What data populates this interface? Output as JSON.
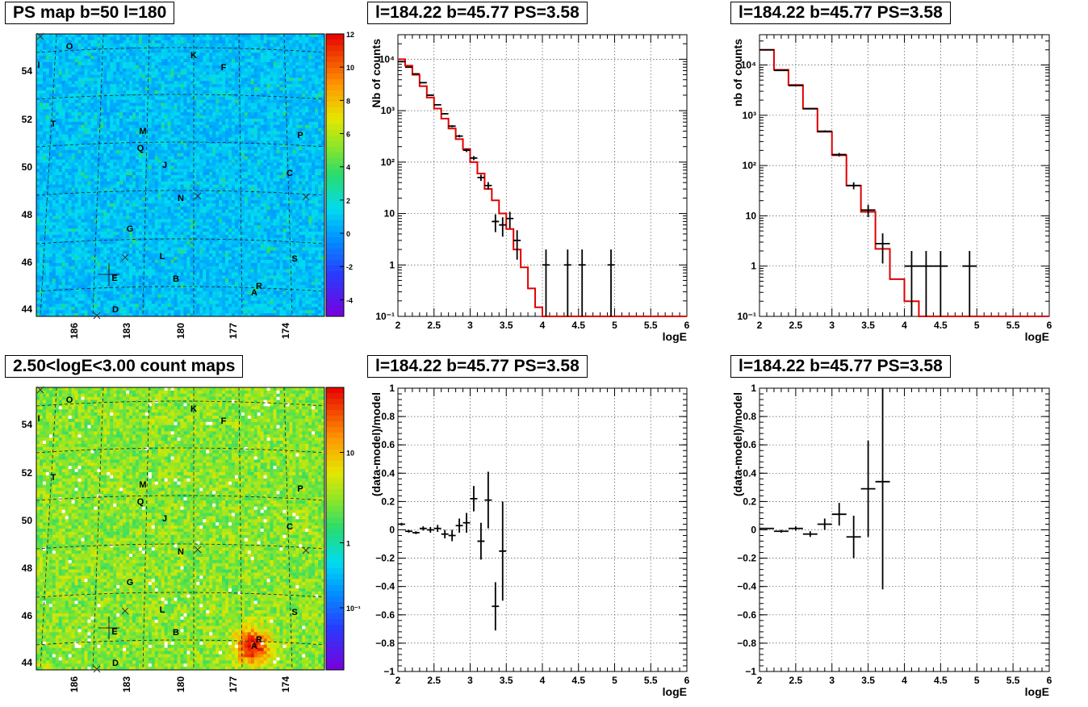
{
  "panels": {
    "map_top": {
      "title": "PS map b=50 l=180",
      "yticks": [
        "44",
        "46",
        "48",
        "50",
        "52",
        "54"
      ],
      "xticks": [
        "186",
        "183",
        "180",
        "177",
        "174"
      ],
      "colorbar_labels": [
        "-4",
        "-2",
        "0",
        "2",
        "4",
        "6",
        "8",
        "10",
        "12"
      ],
      "colorbar_range": [
        -5,
        12
      ]
    },
    "map_bottom": {
      "title": "2.50<logE<3.00 count maps",
      "yticks": [
        "44",
        "46",
        "48",
        "50",
        "52",
        "54"
      ],
      "xticks": [
        "186",
        "183",
        "180",
        "177",
        "174"
      ],
      "colorbar_labels": [
        "10⁻¹",
        "1",
        "10"
      ],
      "colorbar_log": true
    },
    "map_sources": [
      {
        "label": "O"
      },
      {
        "label": "I"
      },
      {
        "label": "K"
      },
      {
        "label": "F"
      },
      {
        "label": "T"
      },
      {
        "label": "M"
      },
      {
        "label": "P"
      },
      {
        "label": "Q"
      },
      {
        "label": "J"
      },
      {
        "label": "C"
      },
      {
        "label": "N"
      },
      {
        "label": "G"
      },
      {
        "label": "L"
      },
      {
        "label": "S"
      },
      {
        "label": "E"
      },
      {
        "label": "B"
      },
      {
        "label": "R"
      },
      {
        "label": "A"
      },
      {
        "label": "D"
      }
    ]
  },
  "chart_data": [
    {
      "type": "line",
      "title": "l=184.22 b=45.77 PS=3.58",
      "xlabel": "logE",
      "ylabel": "Nb of counts",
      "xlim": [
        2,
        6
      ],
      "ylim": [
        0.1,
        30000
      ],
      "log_y": true,
      "xticks": [
        "2",
        "2.5",
        "3",
        "3.5",
        "4",
        "4.5",
        "5",
        "5.5",
        "6"
      ],
      "yticks": [
        {
          "v": 0.1,
          "t": "10⁻¹"
        },
        {
          "v": 1,
          "t": "1"
        },
        {
          "v": 10,
          "t": "10"
        },
        {
          "v": 100,
          "t": "10²"
        },
        {
          "v": 1000,
          "t": "10³"
        },
        {
          "v": 10000,
          "t": "10⁴"
        }
      ],
      "bin_width": 0.1,
      "data": [
        {
          "x": 2.05,
          "y": 9000
        },
        {
          "x": 2.15,
          "y": 7000
        },
        {
          "x": 2.25,
          "y": 5200
        },
        {
          "x": 2.35,
          "y": 3500
        },
        {
          "x": 2.45,
          "y": 2000
        },
        {
          "x": 2.55,
          "y": 1300
        },
        {
          "x": 2.65,
          "y": 870
        },
        {
          "x": 2.75,
          "y": 500
        },
        {
          "x": 2.85,
          "y": 320
        },
        {
          "x": 2.95,
          "y": 170
        },
        {
          "x": 3.05,
          "y": 120
        },
        {
          "x": 3.15,
          "y": 50
        },
        {
          "x": 3.25,
          "y": 35
        },
        {
          "x": 3.35,
          "y": 7
        },
        {
          "x": 3.45,
          "y": 6
        },
        {
          "x": 3.55,
          "y": 8
        },
        {
          "x": 3.65,
          "y": 3
        },
        {
          "x": 4.05,
          "y": 1
        },
        {
          "x": 4.35,
          "y": 1
        },
        {
          "x": 4.55,
          "y": 1
        },
        {
          "x": 4.95,
          "y": 1
        }
      ],
      "model": [
        10000,
        7500,
        5000,
        3000,
        1800,
        1100,
        700,
        450,
        280,
        180,
        100,
        60,
        30,
        18,
        10,
        5,
        2,
        0.9,
        0.35,
        0.15,
        0.1,
        0.1,
        0.1,
        0.1,
        0.1,
        0.1,
        0.1,
        0.1,
        0.1,
        0.1,
        0.1,
        0.1,
        0.1,
        0.1,
        0.1,
        0.1,
        0.1,
        0.1,
        0.1,
        0.1
      ]
    },
    {
      "type": "line",
      "title": "l=184.22 b=45.77 PS=3.58",
      "xlabel": "logE",
      "ylabel": "nb of counts",
      "xlim": [
        2,
        6
      ],
      "ylim": [
        0.1,
        40000
      ],
      "log_y": true,
      "xticks": [
        "2",
        "2.5",
        "3",
        "3.5",
        "4",
        "4.5",
        "5",
        "5.5",
        "6"
      ],
      "yticks": [
        {
          "v": 0.1,
          "t": "10⁻¹"
        },
        {
          "v": 1,
          "t": "1"
        },
        {
          "v": 10,
          "t": "10"
        },
        {
          "v": 100,
          "t": "10²"
        },
        {
          "v": 1000,
          "t": "10³"
        },
        {
          "v": 10000,
          "t": "10⁴"
        }
      ],
      "bin_width": 0.2,
      "data": [
        {
          "x": 2.1,
          "y": 20000
        },
        {
          "x": 2.3,
          "y": 7800
        },
        {
          "x": 2.5,
          "y": 3900
        },
        {
          "x": 2.7,
          "y": 1350
        },
        {
          "x": 2.9,
          "y": 480
        },
        {
          "x": 3.1,
          "y": 165
        },
        {
          "x": 3.3,
          "y": 40
        },
        {
          "x": 3.5,
          "y": 13
        },
        {
          "x": 3.7,
          "y": 2.8
        },
        {
          "x": 4.1,
          "y": 1
        },
        {
          "x": 4.3,
          "y": 1
        },
        {
          "x": 4.5,
          "y": 1
        },
        {
          "x": 4.9,
          "y": 1
        }
      ],
      "model": [
        20000,
        8000,
        4000,
        1350,
        470,
        160,
        40,
        12,
        2.2,
        0.55,
        0.2,
        0.1,
        0.1,
        0.1,
        0.1,
        0.1,
        0.1,
        0.1,
        0.1,
        0.1
      ]
    },
    {
      "type": "scatter",
      "title": "l=184.22 b=45.77 PS=3.58",
      "xlabel": "logE",
      "ylabel": "(data-model)/model",
      "xlim": [
        2,
        6
      ],
      "ylim": [
        -1,
        1
      ],
      "xticks": [
        "2",
        "2.5",
        "3",
        "3.5",
        "4",
        "4.5",
        "5",
        "5.5",
        "6"
      ],
      "yticks": [
        {
          "v": -1,
          "t": "−1"
        },
        {
          "v": -0.8,
          "t": "−0.8"
        },
        {
          "v": -0.6,
          "t": "−0.6"
        },
        {
          "v": -0.4,
          "t": "−0.4"
        },
        {
          "v": -0.2,
          "t": "−0.2"
        },
        {
          "v": 0,
          "t": "0"
        },
        {
          "v": 0.2,
          "t": "0.2"
        },
        {
          "v": 0.4,
          "t": "0.4"
        },
        {
          "v": 0.6,
          "t": "0.6"
        },
        {
          "v": 0.8,
          "t": "0.8"
        },
        {
          "v": 1,
          "t": "1"
        }
      ],
      "bin_width": 0.1,
      "data": [
        {
          "x": 2.05,
          "y": 0.04,
          "err": 0.01
        },
        {
          "x": 2.15,
          "y": -0.01,
          "err": 0.01
        },
        {
          "x": 2.25,
          "y": -0.02,
          "err": 0.01
        },
        {
          "x": 2.35,
          "y": 0.01,
          "err": 0.015
        },
        {
          "x": 2.45,
          "y": 0.0,
          "err": 0.02
        },
        {
          "x": 2.55,
          "y": 0.01,
          "err": 0.025
        },
        {
          "x": 2.65,
          "y": -0.03,
          "err": 0.03
        },
        {
          "x": 2.75,
          "y": -0.04,
          "err": 0.04
        },
        {
          "x": 2.85,
          "y": 0.03,
          "err": 0.05
        },
        {
          "x": 2.95,
          "y": 0.05,
          "err": 0.07
        },
        {
          "x": 3.05,
          "y": 0.22,
          "err": 0.09
        },
        {
          "x": 3.15,
          "y": -0.08,
          "err": 0.13
        },
        {
          "x": 3.25,
          "y": 0.21,
          "err": 0.2
        },
        {
          "x": 3.35,
          "y": -0.54,
          "err": 0.17
        },
        {
          "x": 3.45,
          "y": -0.15,
          "err": 0.35
        }
      ]
    },
    {
      "type": "scatter",
      "title": "l=184.22 b=45.77 PS=3.58",
      "xlabel": "logE",
      "ylabel": "(data-model)/model",
      "xlim": [
        2,
        6
      ],
      "ylim": [
        -1,
        1
      ],
      "xticks": [
        "2",
        "2.5",
        "3",
        "3.5",
        "4",
        "4.5",
        "5",
        "5.5",
        "6"
      ],
      "yticks": [
        {
          "v": -1,
          "t": "−1"
        },
        {
          "v": -0.8,
          "t": "−0.8"
        },
        {
          "v": -0.6,
          "t": "−0.6"
        },
        {
          "v": -0.4,
          "t": "−0.4"
        },
        {
          "v": -0.2,
          "t": "−0.2"
        },
        {
          "v": 0,
          "t": "0"
        },
        {
          "v": 0.2,
          "t": "0.2"
        },
        {
          "v": 0.4,
          "t": "0.4"
        },
        {
          "v": 0.6,
          "t": "0.6"
        },
        {
          "v": 0.8,
          "t": "0.8"
        },
        {
          "v": 1,
          "t": "1"
        }
      ],
      "bin_width": 0.2,
      "data": [
        {
          "x": 2.1,
          "y": 0.01,
          "err": 0.005
        },
        {
          "x": 2.3,
          "y": -0.01,
          "err": 0.01
        },
        {
          "x": 2.5,
          "y": 0.01,
          "err": 0.015
        },
        {
          "x": 2.7,
          "y": -0.03,
          "err": 0.02
        },
        {
          "x": 2.9,
          "y": 0.04,
          "err": 0.04
        },
        {
          "x": 3.1,
          "y": 0.11,
          "err": 0.08
        },
        {
          "x": 3.3,
          "y": -0.05,
          "err": 0.15
        },
        {
          "x": 3.5,
          "y": 0.29,
          "err": 0.34
        },
        {
          "x": 3.7,
          "y": 0.34,
          "err": 0.76
        }
      ]
    }
  ]
}
